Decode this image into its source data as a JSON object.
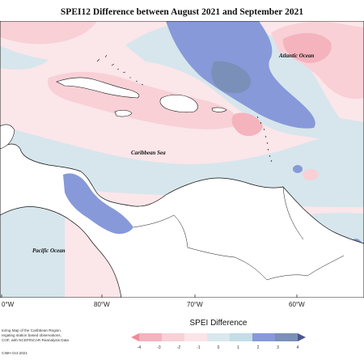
{
  "title": "SPEI12 Difference between August 2021 and September 2021",
  "ocean_labels": {
    "atlantic": "Atlantic Ocean",
    "caribbean": "Caribbean Sea",
    "pacific": "Pacific Ocean"
  },
  "longitude_labels": [
    "0°W",
    "80°W",
    "70°W",
    "60°W"
  ],
  "legend": {
    "title": "SPEI Difference",
    "ticks": [
      "-4",
      "-3",
      "-2",
      "-1",
      "0",
      "1",
      "2",
      "3",
      "4"
    ],
    "colors": [
      "#f08a9a",
      "#f4b3bd",
      "#f8d0d6",
      "#fbe4e8",
      "#d8e8ee",
      "#c4dde6",
      "#8799d9",
      "#7a90b8",
      "#4a5590"
    ]
  },
  "credits": {
    "line1": "toring Map of the Caribbean Region.",
    "line2": "regating station based observations,",
    "line3": "COF, with NCEP/NCAR Reanalysis Data",
    "date": "CIMH Oct-2021"
  }
}
